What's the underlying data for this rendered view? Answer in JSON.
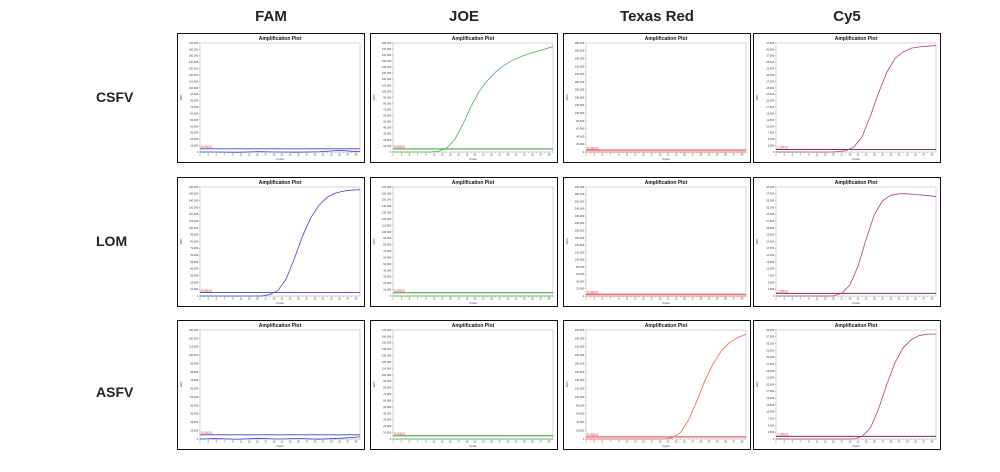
{
  "columns": [
    "FAM",
    "JOE",
    "Texas Red",
    "Cy5"
  ],
  "rows": [
    "CSFV",
    "LOM",
    "ASFV"
  ],
  "chart_data": [
    {
      "type": "line",
      "row": "CSFV",
      "channel": "FAM",
      "title": "Amplification Plot",
      "xlabel": "Cycle",
      "ylabel": "ΔRn",
      "y_ticks": [
        "0",
        "10,000",
        "20,000",
        "30,000",
        "40,000",
        "50,000",
        "60,000",
        "70,000",
        "80,000",
        "90,000",
        "100,000",
        "110,000",
        "120,000",
        "130,000",
        "140,000",
        "150,000",
        "160,000",
        "170,000"
      ],
      "ylim": [
        0,
        170000
      ],
      "xlim": [
        1,
        40
      ],
      "threshold": 5000,
      "threshold_label": "5,000.0",
      "line_color": "#3a46c8",
      "threshold_color": "#3a46c8",
      "series": [
        {
          "x": [
            1,
            5,
            10,
            15,
            20,
            25,
            30,
            35,
            40
          ],
          "y": [
            0,
            0,
            -500,
            500,
            0,
            -300,
            400,
            2500,
            500
          ]
        }
      ]
    },
    {
      "type": "line",
      "row": "CSFV",
      "channel": "JOE",
      "title": "Amplification Plot",
      "xlabel": "Cycle",
      "ylabel": "ΔRn",
      "y_ticks": [
        "0",
        "10,000",
        "20,000",
        "30,000",
        "40,000",
        "50,000",
        "60,000",
        "70,000",
        "80,000",
        "90,000",
        "100,000",
        "110,000",
        "120,000",
        "130,000",
        "140,000",
        "150,000",
        "160,000",
        "170,000",
        "180,000"
      ],
      "ylim": [
        0,
        180000
      ],
      "xlim": [
        1,
        40
      ],
      "threshold": 5000,
      "threshold_label": "5,000.0",
      "line_color": "#4caf50",
      "threshold_color": "#1e8a1e",
      "series": [
        {
          "x": [
            1,
            5,
            10,
            12,
            14,
            16,
            18,
            20,
            22,
            24,
            26,
            28,
            30,
            32,
            34,
            36,
            38,
            40
          ],
          "y": [
            0,
            0,
            0,
            1000,
            6000,
            20000,
            45000,
            75000,
            100000,
            118000,
            132000,
            143000,
            151000,
            157000,
            162000,
            166000,
            170000,
            174000
          ]
        }
      ]
    },
    {
      "type": "line",
      "row": "CSFV",
      "channel": "Texas Red",
      "title": "Amplification Plot",
      "xlabel": "Cycle",
      "ylabel": "ΔRn",
      "y_ticks": [
        "0",
        "20,000",
        "40,000",
        "60,000",
        "80,000",
        "100,000",
        "120,000",
        "140,000",
        "160,000",
        "180,000",
        "200,000",
        "220,000",
        "240,000",
        "260,000",
        "280,000"
      ],
      "ylim": [
        0,
        280000
      ],
      "xlim": [
        1,
        40
      ],
      "threshold": 5000,
      "threshold_label": "5,000.0",
      "line_color": "#ff5a4a",
      "threshold_color": "#d62020",
      "series": [
        {
          "x": [
            1,
            10,
            20,
            30,
            40
          ],
          "y": [
            0,
            0,
            0,
            0,
            0
          ]
        }
      ]
    },
    {
      "type": "line",
      "row": "CSFV",
      "channel": "Cy5",
      "title": "Amplification Plot",
      "xlabel": "Cycle",
      "ylabel": "ΔRn",
      "y_ticks": [
        "0",
        "2,500",
        "5,000",
        "7,500",
        "10,000",
        "12,500",
        "15,000",
        "17,500",
        "20,000",
        "22,500",
        "25,000",
        "27,500",
        "30,000",
        "32,500",
        "35,000",
        "37,500",
        "40,000",
        "42,500"
      ],
      "ylim": [
        0,
        42500
      ],
      "xlim": [
        1,
        40
      ],
      "threshold": 1000,
      "threshold_label": "1,000.0",
      "line_color": "#b2455c",
      "threshold_color": "#6b1226",
      "series": [
        {
          "x": [
            1,
            5,
            10,
            15,
            18,
            20,
            22,
            24,
            26,
            28,
            30,
            32,
            34,
            36,
            38,
            40
          ],
          "y": [
            0,
            0,
            0,
            0,
            500,
            2000,
            6000,
            14000,
            23000,
            31000,
            36500,
            39000,
            40500,
            41000,
            41300,
            41500
          ]
        }
      ]
    },
    {
      "type": "line",
      "row": "LOM",
      "channel": "FAM",
      "title": "Amplification Plot",
      "xlabel": "Cycle",
      "ylabel": "ΔRn",
      "y_ticks": [
        "0",
        "10,000",
        "20,000",
        "30,000",
        "40,000",
        "50,000",
        "60,000",
        "70,000",
        "80,000",
        "90,000",
        "100,000",
        "110,000",
        "120,000",
        "130,000",
        "140,000",
        "150,000",
        "160,000"
      ],
      "ylim": [
        0,
        160000
      ],
      "xlim": [
        1,
        40
      ],
      "threshold": 5000,
      "threshold_label": "5,000.0",
      "line_color": "#3a46c8",
      "threshold_color": "#3a46c8",
      "series": [
        {
          "x": [
            1,
            10,
            16,
            18,
            20,
            22,
            24,
            26,
            28,
            30,
            32,
            34,
            36,
            38,
            40
          ],
          "y": [
            0,
            0,
            0,
            2000,
            8000,
            25000,
            55000,
            88000,
            115000,
            133000,
            145000,
            151000,
            154000,
            155500,
            156000
          ]
        }
      ]
    },
    {
      "type": "line",
      "row": "LOM",
      "channel": "JOE",
      "title": "Amplification Plot",
      "xlabel": "Cycle",
      "ylabel": "ΔRn",
      "y_ticks": [
        "0",
        "10,000",
        "20,000",
        "30,000",
        "40,000",
        "50,000",
        "60,000",
        "70,000",
        "80,000",
        "90,000",
        "100,000",
        "110,000",
        "120,000",
        "130,000",
        "140,000",
        "150,000",
        "160,000",
        "170,000"
      ],
      "ylim": [
        0,
        170000
      ],
      "xlim": [
        1,
        40
      ],
      "threshold": 5000,
      "threshold_label": "5,000.0",
      "line_color": "#4caf50",
      "threshold_color": "#1e8a1e",
      "series": [
        {
          "x": [
            1,
            10,
            20,
            30,
            40
          ],
          "y": [
            0,
            0,
            0,
            0,
            0
          ]
        }
      ]
    },
    {
      "type": "line",
      "row": "LOM",
      "channel": "Texas Red",
      "title": "Amplification Plot",
      "xlabel": "Cycle",
      "ylabel": "ΔRn",
      "y_ticks": [
        "0",
        "20,000",
        "40,000",
        "60,000",
        "80,000",
        "100,000",
        "120,000",
        "140,000",
        "160,000",
        "180,000",
        "200,000",
        "220,000",
        "240,000",
        "260,000",
        "280,000",
        "300,000"
      ],
      "ylim": [
        0,
        300000
      ],
      "xlim": [
        1,
        40
      ],
      "threshold": 5000,
      "threshold_label": "5,000.0",
      "line_color": "#ff5a4a",
      "threshold_color": "#d62020",
      "series": [
        {
          "x": [
            1,
            10,
            20,
            30,
            40
          ],
          "y": [
            0,
            0,
            0,
            0,
            0
          ]
        }
      ]
    },
    {
      "type": "line",
      "row": "LOM",
      "channel": "Cy5",
      "title": "Amplification Plot",
      "xlabel": "Cycle",
      "ylabel": "ΔRn",
      "y_ticks": [
        "0",
        "2,500",
        "5,000",
        "7,500",
        "10,000",
        "12,500",
        "15,000",
        "17,500",
        "20,000",
        "22,500",
        "25,000",
        "27,500",
        "30,000",
        "32,500",
        "35,000",
        "37,500",
        "40,000"
      ],
      "ylim": [
        0,
        40000
      ],
      "xlim": [
        1,
        40
      ],
      "threshold": 1000,
      "threshold_label": "1,000.0",
      "line_color": "#b2455c",
      "threshold_color": "#6b1226",
      "series": [
        {
          "x": [
            1,
            10,
            15,
            17,
            19,
            21,
            23,
            25,
            27,
            29,
            31,
            33,
            35,
            37,
            40
          ],
          "y": [
            0,
            0,
            0,
            1000,
            4000,
            11000,
            21000,
            30000,
            35000,
            37000,
            37500,
            37500,
            37200,
            37000,
            36500
          ]
        }
      ]
    },
    {
      "type": "line",
      "row": "ASFV",
      "channel": "FAM",
      "title": "Amplification Plot",
      "xlabel": "Cycle",
      "ylabel": "ΔRn",
      "y_ticks": [
        "0",
        "10,000",
        "20,000",
        "30,000",
        "40,000",
        "50,000",
        "60,000",
        "70,000",
        "80,000",
        "90,000",
        "100,000",
        "110,000",
        "120,000",
        "130,000"
      ],
      "ylim": [
        0,
        130000
      ],
      "xlim": [
        1,
        40
      ],
      "threshold": 5000,
      "threshold_label": "5,000.0",
      "line_color": "#3a46c8",
      "threshold_color": "#3a46c8",
      "series": [
        {
          "x": [
            1,
            5,
            10,
            15,
            20,
            25,
            30,
            35,
            40
          ],
          "y": [
            0,
            500,
            -300,
            800,
            0,
            600,
            -200,
            800,
            2500
          ]
        }
      ]
    },
    {
      "type": "line",
      "row": "ASFV",
      "channel": "JOE",
      "title": "Amplification Plot",
      "xlabel": "Cycle",
      "ylabel": "ΔRn",
      "y_ticks": [
        "0",
        "10,000",
        "20,000",
        "30,000",
        "40,000",
        "50,000",
        "60,000",
        "70,000",
        "80,000",
        "90,000",
        "100,000",
        "110,000",
        "120,000",
        "130,000",
        "140,000",
        "150,000",
        "160,000",
        "170,000"
      ],
      "ylim": [
        0,
        170000
      ],
      "xlim": [
        1,
        40
      ],
      "threshold": 5000,
      "threshold_label": "5,000.0",
      "line_color": "#4caf50",
      "threshold_color": "#1e8a1e",
      "series": [
        {
          "x": [
            1,
            10,
            20,
            30,
            40
          ],
          "y": [
            0,
            0,
            0,
            0,
            0
          ]
        }
      ]
    },
    {
      "type": "line",
      "row": "ASFV",
      "channel": "Texas Red",
      "title": "Amplification Plot",
      "xlabel": "Cycle",
      "ylabel": "ΔRn",
      "y_ticks": [
        "0",
        "20,000",
        "40,000",
        "60,000",
        "80,000",
        "100,000",
        "120,000",
        "140,000",
        "160,000",
        "180,000",
        "200,000",
        "220,000",
        "240,000",
        "260,000"
      ],
      "ylim": [
        0,
        260000
      ],
      "xlim": [
        1,
        40
      ],
      "threshold": 5000,
      "threshold_label": "5,000.0",
      "line_color": "#ff5a4a",
      "threshold_color": "#d62020",
      "series": [
        {
          "x": [
            1,
            10,
            20,
            22,
            24,
            26,
            28,
            30,
            32,
            34,
            36,
            38,
            40
          ],
          "y": [
            0,
            0,
            0,
            3000,
            15000,
            45000,
            90000,
            140000,
            180000,
            210000,
            230000,
            242000,
            250000
          ]
        }
      ]
    },
    {
      "type": "line",
      "row": "ASFV",
      "channel": "Cy5",
      "title": "Amplification Plot",
      "xlabel": "Cycle",
      "ylabel": "ΔRn",
      "y_ticks": [
        "0",
        "2,500",
        "5,000",
        "7,500",
        "10,000",
        "12,500",
        "15,000",
        "17,500",
        "20,000",
        "22,500",
        "25,000",
        "27,500",
        "30,000",
        "32,500",
        "35,000",
        "37,500",
        "40,000"
      ],
      "ylim": [
        0,
        40000
      ],
      "xlim": [
        1,
        40
      ],
      "threshold": 1000,
      "threshold_label": "1,000.0",
      "line_color": "#b2455c",
      "threshold_color": "#6b1226",
      "series": [
        {
          "x": [
            1,
            10,
            20,
            22,
            24,
            26,
            28,
            30,
            32,
            34,
            36,
            38,
            40
          ],
          "y": [
            0,
            0,
            0,
            1000,
            4000,
            11000,
            20000,
            28000,
            33500,
            36500,
            38000,
            38500,
            38500
          ]
        }
      ]
    }
  ]
}
